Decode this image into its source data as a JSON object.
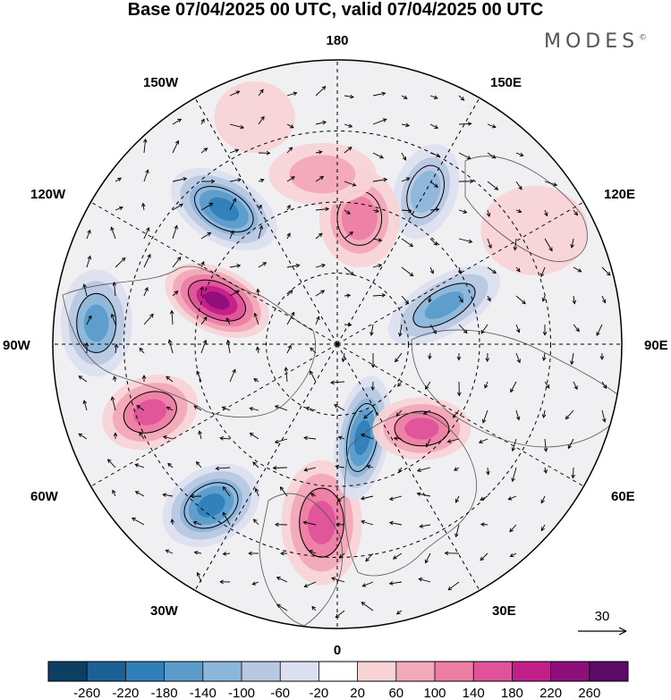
{
  "title": "Base 07/04/2025 00 UTC, valid 07/04/2025 00 UTC",
  "logo": "MODES",
  "logo_mark": "©",
  "longitudes": {
    "top": "180",
    "bottom": "0",
    "left": "90W",
    "right": "90E",
    "upper_left_1": "150W",
    "upper_left_2": "120W",
    "upper_right_1": "150E",
    "upper_right_2": "120E",
    "lower_left_1": "60W",
    "lower_left_2": "30W",
    "lower_right_1": "60E",
    "lower_right_2": "30E"
  },
  "vector_reference": "30",
  "colorbar": {
    "labels": [
      "-260",
      "-220",
      "-180",
      "-140",
      "-100",
      "-60",
      "-20",
      "20",
      "60",
      "100",
      "140",
      "180",
      "220",
      "260"
    ],
    "colors": [
      "#0d3f63",
      "#1c6195",
      "#2f7fb9",
      "#5b9ccb",
      "#8cb6da",
      "#b8c8e2",
      "#dcdfef",
      "#ffffff",
      "#f7d3d6",
      "#f2a9b9",
      "#ec7ea4",
      "#e0529a",
      "#c21f8a",
      "#8e0e7c",
      "#5b0b66"
    ]
  },
  "anomalies": [
    {
      "lon": -110,
      "r": 0.45,
      "rx": 62,
      "ry": 36,
      "rot": 25,
      "value": 240
    },
    {
      "lon": -140,
      "r": 0.62,
      "rx": 65,
      "ry": 38,
      "rot": 30,
      "value": -180
    },
    {
      "lon": -95,
      "r": 0.85,
      "rx": 40,
      "ry": 60,
      "rot": 0,
      "value": -140
    },
    {
      "lon": -70,
      "r": 0.7,
      "rx": 55,
      "ry": 40,
      "rot": -20,
      "value": 160
    },
    {
      "lon": -38,
      "r": 0.72,
      "rx": 58,
      "ry": 42,
      "rot": -30,
      "value": -200
    },
    {
      "lon": -5,
      "r": 0.63,
      "rx": 45,
      "ry": 70,
      "rot": 0,
      "value": 170
    },
    {
      "lon": 15,
      "r": 0.34,
      "rx": 30,
      "ry": 70,
      "rot": 10,
      "value": -210
    },
    {
      "lon": 45,
      "r": 0.42,
      "rx": 55,
      "ry": 35,
      "rot": 0,
      "value": 140
    },
    {
      "lon": 110,
      "r": 0.4,
      "rx": 70,
      "ry": 32,
      "rot": -30,
      "value": -140
    },
    {
      "lon": 150,
      "r": 0.62,
      "rx": 35,
      "ry": 55,
      "rot": 20,
      "value": -120
    },
    {
      "lon": 170,
      "r": 0.45,
      "rx": 45,
      "ry": 55,
      "rot": 0,
      "value": 110
    },
    {
      "lon": -175,
      "r": 0.6,
      "rx": 60,
      "ry": 35,
      "rot": 0,
      "value": 60
    },
    {
      "lon": 120,
      "r": 0.8,
      "rx": 60,
      "ry": 50,
      "rot": 0,
      "value": 50
    },
    {
      "lon": -160,
      "r": 0.85,
      "rx": 45,
      "ry": 40,
      "rot": 0,
      "value": 50
    }
  ]
}
